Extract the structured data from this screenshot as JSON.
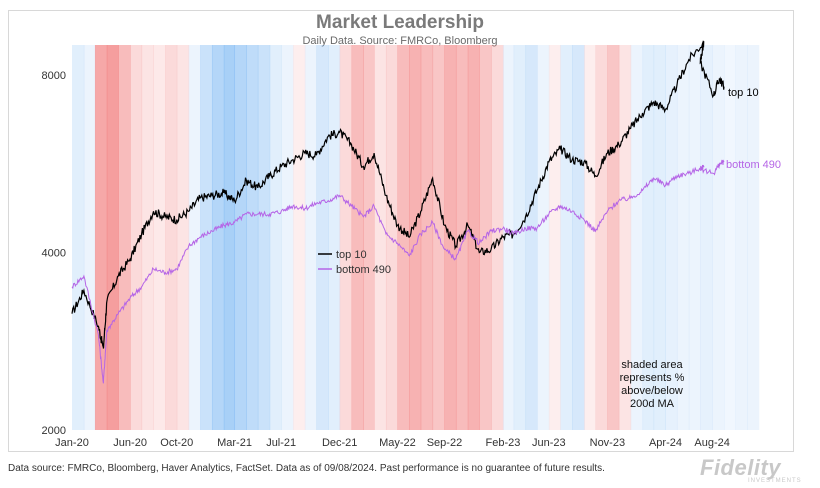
{
  "title": "Market Leadership",
  "subtitle": "Daily Data.  Source: FMRCo, Bloomberg",
  "footer": "Data source: FMRCo, Bloomberg, Haver Analytics, FactSet. Data as of 09/08/2024. Past performance is no guarantee of future results.",
  "logo": {
    "text": "Fidelity",
    "subtext": "INVESTMENTS"
  },
  "colors": {
    "top10": "#000000",
    "bottom490": "#b565e6",
    "above_ma": "#f07070",
    "below_ma": "#5fa8f0"
  },
  "chart_data": {
    "type": "line",
    "title": "Market Leadership",
    "subtitle": "Daily Data.  Source: FMRCo, Bloomberg",
    "y_scale": "log",
    "ylim": [
      2000,
      9000
    ],
    "y_ticks": [
      "2000",
      "4000",
      "8000"
    ],
    "x_ticks": [
      "Jan-20",
      "Jun-20",
      "Oct-20",
      "Mar-21",
      "Jul-21",
      "Dec-21",
      "May-22",
      "Sep-22",
      "Feb-23",
      "Jun-23",
      "Nov-23",
      "Apr-24",
      "Aug-24"
    ],
    "legend": {
      "placement": "center",
      "entries": [
        "top 10",
        "bottom 490"
      ]
    },
    "annotation": "shaded area represents % above/below 200d MA",
    "end_labels": [
      "top 10",
      "bottom 490"
    ],
    "series": [
      {
        "name": "top 10",
        "x": [
          "2020-01",
          "2020-02",
          "2020-03-10",
          "2020-03-23",
          "2020-04",
          "2020-05",
          "2020-06",
          "2020-07",
          "2020-08",
          "2020-09",
          "2020-10",
          "2020-11",
          "2020-12",
          "2021-01",
          "2021-02",
          "2021-03",
          "2021-04",
          "2021-05",
          "2021-06",
          "2021-07",
          "2021-08",
          "2021-09",
          "2021-10",
          "2021-11",
          "2021-12",
          "2022-01",
          "2022-02",
          "2022-03",
          "2022-04",
          "2022-05",
          "2022-06",
          "2022-07",
          "2022-08",
          "2022-09",
          "2022-10",
          "2022-11",
          "2022-12",
          "2023-01",
          "2023-02",
          "2023-03",
          "2023-04",
          "2023-05",
          "2023-06",
          "2023-07",
          "2023-08",
          "2023-09",
          "2023-10",
          "2023-11",
          "2023-12",
          "2024-01",
          "2024-02",
          "2024-03",
          "2024-04",
          "2024-05",
          "2024-06",
          "2024-07-10",
          "2024-07",
          "2024-08-05",
          "2024-08-20",
          "2024-09"
        ],
        "values": [
          3150,
          3450,
          3000,
          2750,
          3300,
          3650,
          3900,
          4300,
          4700,
          4600,
          4550,
          4700,
          4950,
          5000,
          5050,
          4900,
          5300,
          5150,
          5400,
          5600,
          5750,
          5900,
          5850,
          6300,
          6400,
          6100,
          5600,
          5900,
          5000,
          4450,
          4250,
          4700,
          5350,
          4450,
          4100,
          4450,
          4000,
          4050,
          4250,
          4300,
          4600,
          5100,
          5700,
          6000,
          5750,
          5700,
          5400,
          5900,
          6100,
          6500,
          6900,
          7200,
          7000,
          7700,
          8500,
          9100,
          8400,
          7400,
          7900,
          7650
        ]
      },
      {
        "name": "bottom 490",
        "x": [
          "2020-01",
          "2020-02",
          "2020-03-10",
          "2020-03-23",
          "2020-04",
          "2020-05",
          "2020-06",
          "2020-07",
          "2020-08",
          "2020-09",
          "2020-10",
          "2020-11",
          "2020-12",
          "2021-01",
          "2021-02",
          "2021-03",
          "2021-04",
          "2021-05",
          "2021-06",
          "2021-07",
          "2021-08",
          "2021-09",
          "2021-10",
          "2021-11",
          "2021-12",
          "2022-01",
          "2022-02",
          "2022-03",
          "2022-04",
          "2022-05",
          "2022-06",
          "2022-07",
          "2022-08",
          "2022-09",
          "2022-10",
          "2022-11",
          "2022-12",
          "2023-01",
          "2023-02",
          "2023-03",
          "2023-04",
          "2023-05",
          "2023-06",
          "2023-07",
          "2023-08",
          "2023-09",
          "2023-10",
          "2023-11",
          "2023-12",
          "2024-01",
          "2024-02",
          "2024-03",
          "2024-04",
          "2024-05",
          "2024-06",
          "2024-07-10",
          "2024-07",
          "2024-08-05",
          "2024-08-20",
          "2024-09"
        ],
        "values": [
          3500,
          3650,
          2900,
          2400,
          2950,
          3150,
          3350,
          3500,
          3750,
          3700,
          3750,
          4100,
          4250,
          4350,
          4450,
          4500,
          4650,
          4650,
          4650,
          4700,
          4800,
          4750,
          4850,
          4900,
          5000,
          4800,
          4600,
          4800,
          4300,
          4150,
          3950,
          4300,
          4500,
          4050,
          3900,
          4350,
          4150,
          4350,
          4400,
          4300,
          4400,
          4400,
          4650,
          4800,
          4700,
          4550,
          4350,
          4700,
          4900,
          4950,
          5100,
          5350,
          5200,
          5400,
          5450,
          5600,
          5550,
          5450,
          5650,
          5700
        ]
      }
    ],
    "shading": {
      "description": "Background vertical bands; red = above 200d MA, blue = below 200d MA; intensity = magnitude",
      "x_start": "2020-01",
      "months": [
        -0.2,
        -0.1,
        0.8,
        0.9,
        0.6,
        0.3,
        0.2,
        0.15,
        0.3,
        0.2,
        -0.1,
        -0.4,
        -0.6,
        -0.7,
        -0.6,
        -0.5,
        -0.4,
        -0.2,
        -0.1,
        0.1,
        -0.1,
        -0.3,
        -0.2,
        0.3,
        0.6,
        0.5,
        0.2,
        0.3,
        0.6,
        0.7,
        0.6,
        0.5,
        0.7,
        0.6,
        0.7,
        0.5,
        0.3,
        -0.1,
        -0.2,
        -0.3,
        -0.1,
        0.1,
        -0.2,
        -0.3,
        0.1,
        0.3,
        0.5,
        0.2,
        -0.1,
        -0.2,
        -0.2,
        -0.15,
        -0.1,
        -0.1,
        -0.15,
        -0.1,
        -0.05,
        -0.1,
        -0.1
      ]
    }
  }
}
